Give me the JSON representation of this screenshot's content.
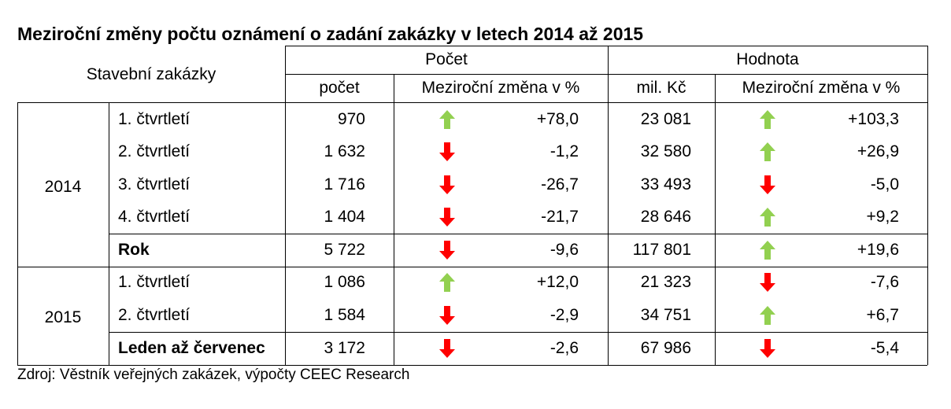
{
  "title": "Meziroční změny počtu oznámení o zadání zakázky v letech 2014 až 2015",
  "source": "Zdroj: Věstník veřejných zakázek, výpočty CEEC Research",
  "colors": {
    "up": "#92d050",
    "down": "#ff0000"
  },
  "header": {
    "row_label": "Stavební zakázky",
    "group_count": "Počet",
    "group_value": "Hodnota",
    "col_count": "počet",
    "col_count_change": "Meziroční změna v %",
    "col_value": "mil. Kč",
    "col_value_change": "Meziroční změna v %"
  },
  "years": {
    "y2014": "2014",
    "y2015": "2015"
  },
  "rows": [
    {
      "label": "1. čtvrtletí",
      "count": "970",
      "count_change": "+78,0",
      "count_dir": "up",
      "value": "23 081",
      "value_change": "+103,3",
      "value_dir": "up"
    },
    {
      "label": "2. čtvrtletí",
      "count": "1 632",
      "count_change": "-1,2",
      "count_dir": "down",
      "value": "32 580",
      "value_change": "+26,9",
      "value_dir": "up"
    },
    {
      "label": "3. čtvrtletí",
      "count": "1 716",
      "count_change": "-26,7",
      "count_dir": "down",
      "value": "33 493",
      "value_change": "-5,0",
      "value_dir": "down"
    },
    {
      "label": "4. čtvrtletí",
      "count": "1 404",
      "count_change": "-21,7",
      "count_dir": "down",
      "value": "28 646",
      "value_change": "+9,2",
      "value_dir": "up"
    },
    {
      "label": "Rok",
      "count": "5 722",
      "count_change": "-9,6",
      "count_dir": "down",
      "value": "117 801",
      "value_change": "+19,6",
      "value_dir": "up"
    },
    {
      "label": "1. čtvrtletí",
      "count": "1 086",
      "count_change": "+12,0",
      "count_dir": "up",
      "value": "21 323",
      "value_change": "-7,6",
      "value_dir": "down"
    },
    {
      "label": "2. čtvrtletí",
      "count": "1 584",
      "count_change": "-2,9",
      "count_dir": "down",
      "value": "34 751",
      "value_change": "+6,7",
      "value_dir": "up"
    },
    {
      "label": "Leden až červenec",
      "count": "3 172",
      "count_change": "-2,6",
      "count_dir": "down",
      "value": "67 986",
      "value_change": "-5,4",
      "value_dir": "down"
    }
  ]
}
